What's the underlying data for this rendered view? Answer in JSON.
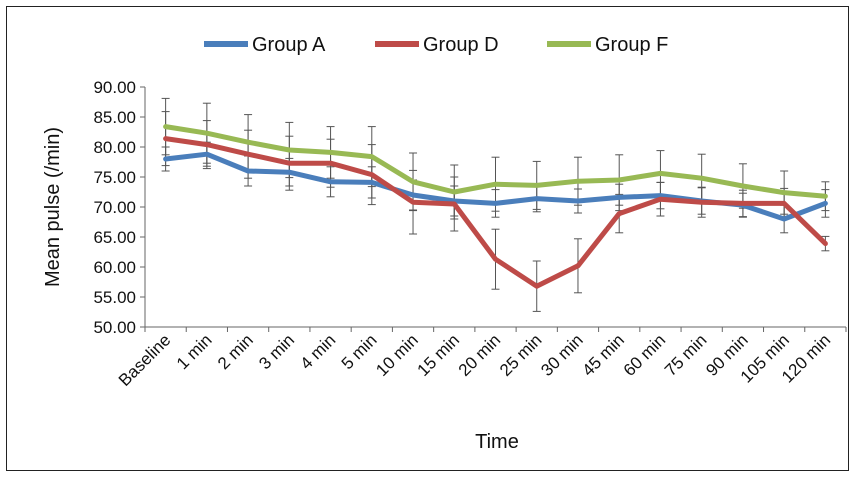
{
  "chart_data": {
    "type": "line",
    "title": "",
    "xlabel": "Time",
    "ylabel": "Mean pulse (/min)",
    "ylim": [
      50,
      90
    ],
    "ytick_step": 5,
    "ytick_decimals": 2,
    "legend_position": "top",
    "grid": false,
    "categories": [
      "Baseline",
      "1 min",
      "2 min",
      "3 min",
      "4 min",
      "5 min",
      "10 min",
      "15 min",
      "20 min",
      "25 min",
      "30 min",
      "45 min",
      "60 min",
      "75 min",
      "90 min",
      "105 min",
      "120 min"
    ],
    "series": [
      {
        "name": "Group A",
        "color": "#4a7ebb",
        "values": [
          78.0,
          78.8,
          76.0,
          75.8,
          74.2,
          74.1,
          72.0,
          71.0,
          70.6,
          71.4,
          71.0,
          71.6,
          71.9,
          71.0,
          70.3,
          68.0,
          70.6
        ],
        "error": [
          2.0,
          2.0,
          2.5,
          2.3,
          2.5,
          2.6,
          2.5,
          2.5,
          2.3,
          2.2,
          2.0,
          2.2,
          2.2,
          2.2,
          2.0,
          2.3,
          2.3
        ]
      },
      {
        "name": "Group D",
        "color": "#be4b48",
        "values": [
          81.4,
          80.4,
          78.8,
          77.3,
          77.3,
          75.4,
          70.8,
          70.5,
          61.3,
          56.8,
          60.2,
          68.9,
          71.3,
          70.8,
          70.6,
          70.6,
          63.9
        ],
        "error": [
          4.5,
          4.0,
          4.0,
          4.5,
          4.0,
          5.0,
          5.3,
          4.5,
          5.0,
          4.2,
          4.5,
          3.2,
          2.8,
          2.5,
          2.2,
          2.5,
          1.2
        ]
      },
      {
        "name": "Group F",
        "color": "#98b954",
        "values": [
          83.4,
          82.3,
          80.8,
          79.5,
          79.1,
          78.4,
          74.2,
          72.5,
          73.8,
          73.6,
          74.3,
          74.5,
          75.6,
          74.8,
          73.5,
          72.4,
          71.8
        ],
        "error": [
          4.7,
          5.0,
          4.6,
          4.6,
          4.3,
          5.0,
          4.8,
          4.5,
          4.5,
          4.0,
          4.0,
          4.2,
          3.8,
          4.0,
          3.7,
          3.6,
          2.4
        ]
      }
    ]
  }
}
